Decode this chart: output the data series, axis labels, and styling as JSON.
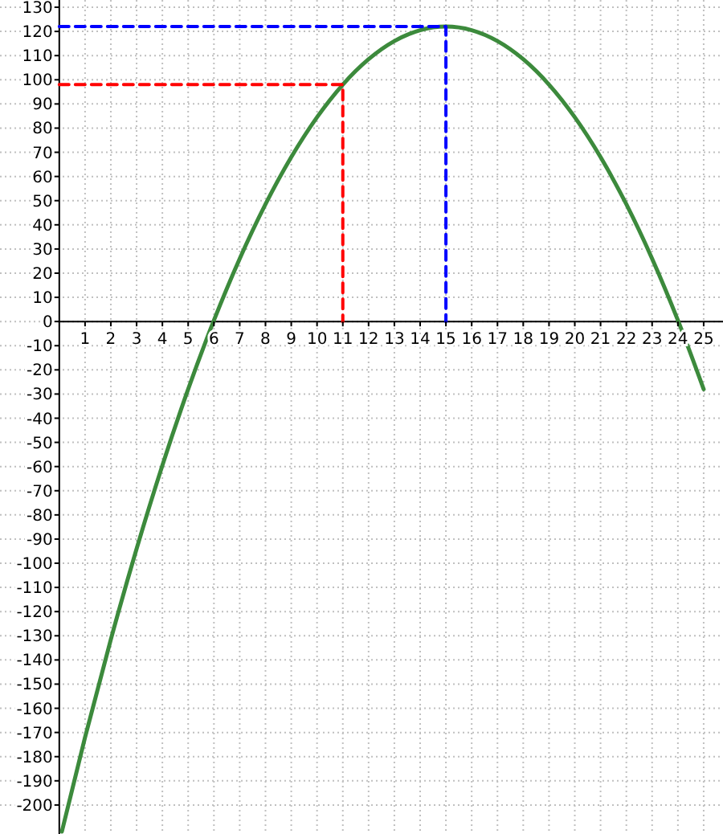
{
  "chart_data": {
    "type": "line",
    "xlim": [
      -2.3,
      25.75
    ],
    "ylim": [
      -212,
      133
    ],
    "xticks": [
      1,
      2,
      3,
      4,
      5,
      6,
      7,
      8,
      9,
      10,
      11,
      12,
      13,
      14,
      15,
      16,
      17,
      18,
      19,
      20,
      21,
      22,
      23,
      24,
      25
    ],
    "yticks": [
      -200,
      -190,
      -180,
      -170,
      -160,
      -150,
      -140,
      -130,
      -120,
      -110,
      -100,
      -90,
      -80,
      -70,
      -60,
      -50,
      -40,
      -30,
      -20,
      -10,
      0,
      10,
      20,
      30,
      40,
      50,
      60,
      70,
      80,
      90,
      100,
      110,
      120,
      130
    ],
    "grid": true,
    "series": [
      {
        "color": "#3c8a3c",
        "line_style": "solid",
        "x": [
          0.1,
          1,
          2,
          3,
          4,
          5,
          6,
          7,
          8,
          9,
          10,
          11,
          12,
          13,
          14,
          15,
          16,
          17,
          18,
          19,
          20,
          21,
          22,
          23,
          24,
          25
        ],
        "values": [
          -211,
          -172,
          -131.5,
          -94,
          -59.5,
          -28,
          0.5,
          26,
          48.5,
          68,
          84.5,
          98,
          108.5,
          116,
          120.5,
          122,
          120.5,
          116,
          108.5,
          98,
          84.5,
          68,
          48.5,
          26,
          0.5,
          -28
        ]
      },
      {
        "color": "#ff0000",
        "line_style": "dashed",
        "x": [
          0,
          11,
          11
        ],
        "values": [
          98,
          98,
          0
        ]
      },
      {
        "color": "#0000ff",
        "line_style": "dashed",
        "x": [
          0,
          15,
          15
        ],
        "values": [
          122,
          122,
          0
        ]
      }
    ]
  }
}
